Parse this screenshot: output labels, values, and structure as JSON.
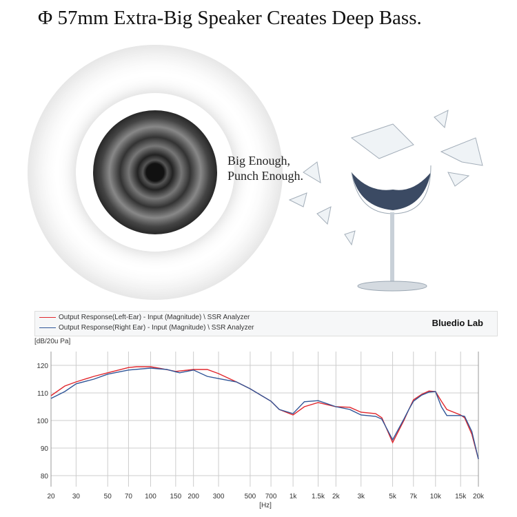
{
  "title": "Φ 57mm Extra-Big Speaker Creates Deep Bass.",
  "tagline": [
    "Big Enough,",
    "Punch Enough."
  ],
  "chart_data": {
    "type": "line",
    "xscale": "log",
    "xlabel": "[Hz]",
    "ylabel": "[dB/20u Pa]",
    "xlim": [
      20,
      20000
    ],
    "ylim": [
      76,
      125
    ],
    "grid": true,
    "legend_placement": "top",
    "brand": "Bluedio Lab",
    "xticks": [
      [
        20,
        "20"
      ],
      [
        30,
        "30"
      ],
      [
        50,
        "50"
      ],
      [
        70,
        "70"
      ],
      [
        100,
        "100"
      ],
      [
        150,
        "150"
      ],
      [
        200,
        "200"
      ],
      [
        300,
        "300"
      ],
      [
        500,
        "500"
      ],
      [
        700,
        "700"
      ],
      [
        1000,
        "1k"
      ],
      [
        1500,
        "1.5k"
      ],
      [
        2000,
        "2k"
      ],
      [
        3000,
        "3k"
      ],
      [
        5000,
        "5k"
      ],
      [
        7000,
        "7k"
      ],
      [
        10000,
        "10k"
      ],
      [
        15000,
        "15k"
      ],
      [
        20000,
        "20k"
      ]
    ],
    "yticks": [
      80,
      90,
      100,
      110,
      120
    ],
    "series": [
      {
        "name": "Output Response(Left-Ear) - Input (Magnitude) \\ SSR Analyzer",
        "color": "#e0262c",
        "x": [
          20,
          25,
          30,
          40,
          50,
          70,
          80,
          100,
          120,
          150,
          200,
          250,
          300,
          400,
          500,
          700,
          800,
          1000,
          1200,
          1500,
          2000,
          2500,
          3000,
          3800,
          4200,
          5000,
          6000,
          6500,
          7000,
          8000,
          9000,
          10000,
          11000,
          12000,
          15000,
          16000,
          18000,
          20000
        ],
        "y": [
          109,
          112.5,
          114,
          116,
          117.3,
          119.2,
          119.5,
          119.5,
          118.8,
          117.8,
          118.5,
          118.5,
          117,
          114,
          111.5,
          107,
          104,
          102,
          105,
          106.5,
          105,
          104.8,
          103,
          102.5,
          101,
          92,
          100,
          104,
          107.5,
          109.5,
          110.7,
          110.5,
          107,
          104,
          102,
          101,
          95,
          86
        ]
      },
      {
        "name": "Output Response(Right Ear) - Input (Magnitude) \\ SSR Analyzer",
        "color": "#2f5597",
        "x": [
          20,
          25,
          30,
          40,
          50,
          70,
          100,
          130,
          160,
          200,
          250,
          300,
          400,
          500,
          700,
          800,
          1000,
          1200,
          1500,
          2000,
          2500,
          3000,
          3800,
          4200,
          5000,
          6000,
          6500,
          7000,
          8000,
          9000,
          10000,
          11000,
          12000,
          15000,
          16000,
          18000,
          20000
        ],
        "y": [
          108,
          110.5,
          113.3,
          115,
          116.8,
          118.3,
          119,
          118.5,
          117.3,
          118.3,
          116,
          115.2,
          114,
          111.5,
          107,
          104,
          102.5,
          106.8,
          107.2,
          105,
          104,
          102,
          101.5,
          100.5,
          93,
          100.5,
          104,
          107,
          109.2,
          110.3,
          110.5,
          105,
          101.8,
          101.8,
          101.5,
          96,
          86
        ]
      }
    ]
  }
}
